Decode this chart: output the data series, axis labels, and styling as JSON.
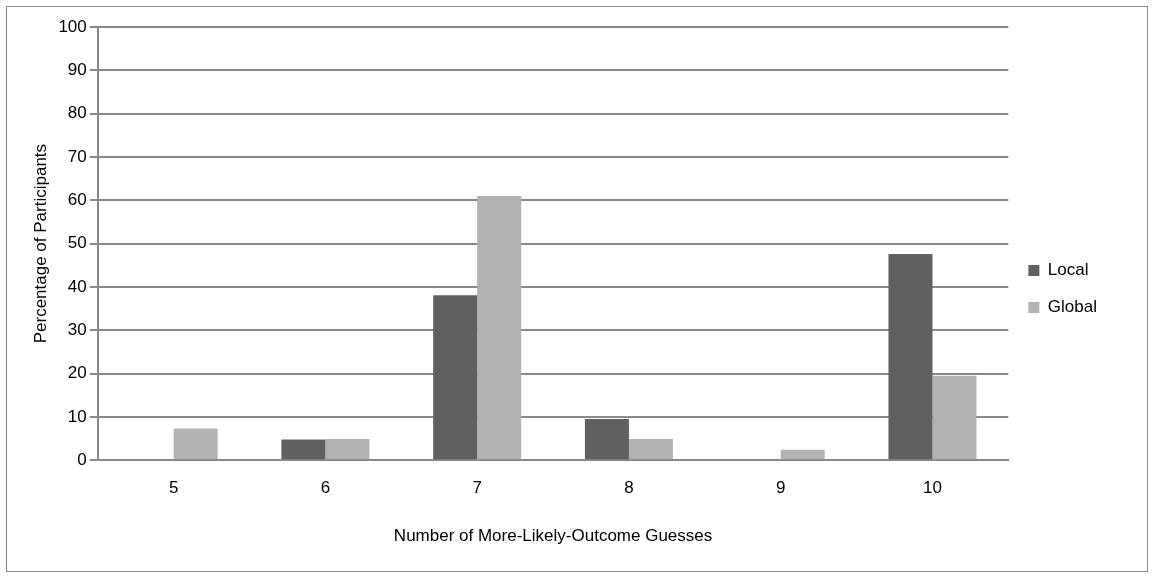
{
  "chart_data": {
    "type": "bar",
    "xlabel": "Number of More-Likely-Outcome Guesses",
    "ylabel": "Percentage of Participants",
    "categories": [
      "5",
      "6",
      "7",
      "8",
      "9",
      "10"
    ],
    "series": [
      {
        "name": "Local",
        "color": "#606060",
        "values": [
          0,
          4.8,
          38.1,
          9.5,
          0,
          47.6
        ]
      },
      {
        "name": "Global",
        "color": "#b2b2b2",
        "values": [
          7.3,
          4.9,
          61,
          4.9,
          2.4,
          19.5
        ]
      }
    ],
    "ylim": [
      0,
      100
    ],
    "yticks": [
      0,
      10,
      20,
      30,
      40,
      50,
      60,
      70,
      80,
      90,
      100
    ],
    "grid": "y",
    "legend": "right"
  }
}
